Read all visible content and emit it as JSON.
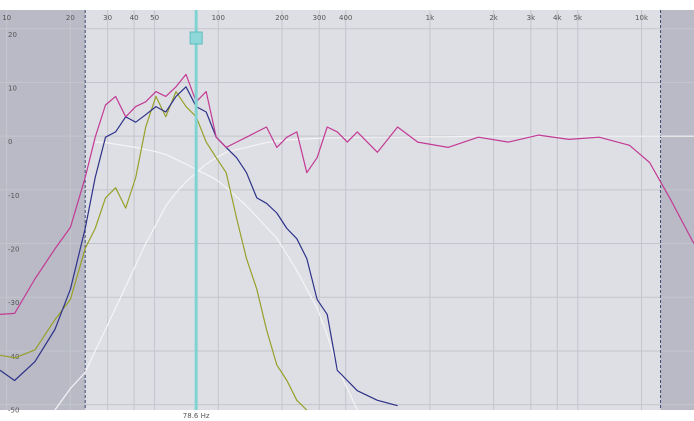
{
  "chart_data": {
    "type": "line",
    "log_x": true,
    "grid": true,
    "xlim": [
      9.3,
      17700
    ],
    "ylim": [
      -51,
      23.5
    ],
    "xticks": [
      10,
      20,
      30,
      40,
      50,
      100,
      200,
      300,
      400,
      {
        "value": 1000,
        "label": "1k"
      },
      {
        "value": 2000,
        "label": "2k"
      },
      {
        "value": 3000,
        "label": "3k"
      },
      {
        "value": 4000,
        "label": "4k"
      },
      {
        "value": 5000,
        "label": "5k"
      },
      {
        "value": 10000,
        "label": "10k"
      }
    ],
    "yticks": [
      20,
      10,
      0,
      -10,
      -20,
      -30,
      -40,
      -50
    ],
    "limits": [
      23.5,
      12300
    ],
    "cursor": {
      "value": 78.6,
      "label": "78.6 Hz"
    },
    "x": [
      9.3,
      10.9,
      13.6,
      16.9,
      20.0,
      23.5,
      26.2,
      29.3,
      32.7,
      36.5,
      40.7,
      45.4,
      50.7,
      56.5,
      63.1,
      70.4,
      78.6,
      87.7,
      97.8,
      109,
      122,
      136,
      152,
      169,
      189,
      211,
      235,
      262,
      293,
      327,
      365,
      407,
      454,
      565,
      704,
      877,
      1218,
      1693,
      2352,
      3268,
      4541,
      6310,
      8770,
      10920,
      13590,
      17690
    ],
    "series": [
      {
        "color": "#c23a94",
        "values": [
          -33.2,
          -33,
          -26.6,
          -21,
          -17,
          -7.7,
          -0.2,
          5.8,
          7.4,
          3.6,
          5.5,
          6.4,
          8.3,
          7.4,
          9.2,
          11.5,
          6.4,
          8.3,
          -0.2,
          -2.1,
          -1.1,
          -0.2,
          0.8,
          1.7,
          -2.1,
          -0.2,
          0.8,
          -6.8,
          -4.0,
          1.7,
          0.8,
          -1.1,
          0.8,
          -3.0,
          1.7,
          -1.1,
          -2.1,
          -0.2,
          -1.1,
          0.2,
          -0.6,
          -0.2,
          -1.7,
          -4.9,
          -11.5,
          -20
        ]
      },
      {
        "color": "#2e3288",
        "values": [
          -43.6,
          -45.5,
          -42,
          -36,
          -28.5,
          -17.2,
          -7.7,
          -0.2,
          0.8,
          3.6,
          2.6,
          4.0,
          5.5,
          4.5,
          7.4,
          9.2,
          5.5,
          4.5,
          -0.2,
          -2.1,
          -4.0,
          -6.8,
          -11.5,
          -12.5,
          -14.3,
          -17.2,
          -19.1,
          -22.8,
          -30.4,
          -33.2,
          -43.6,
          -45.5,
          -47.4,
          -49.2,
          -50.2,
          null,
          null,
          null,
          null,
          null,
          null,
          null,
          null,
          null,
          null,
          null
        ]
      },
      {
        "color": "#98a02a",
        "values": [
          -40.8,
          -41.3,
          -39.8,
          -34.2,
          -30.4,
          -20.9,
          -17.2,
          -11.5,
          -9.6,
          -13.4,
          -7.7,
          1.7,
          7.4,
          3.6,
          8.3,
          5.5,
          3.6,
          -1.1,
          -4.0,
          -6.8,
          -15.3,
          -22.8,
          -28.5,
          -36,
          -42.6,
          -45.5,
          -49.2,
          -51,
          null,
          null,
          null,
          null,
          null,
          null,
          null,
          null,
          null,
          null,
          null,
          null,
          null,
          null,
          null,
          null,
          null,
          null
        ]
      },
      {
        "color": "#f4f4f6",
        "values": [
          null,
          null,
          null,
          null,
          null,
          null,
          -1.1,
          -1.2,
          -1.5,
          -1.8,
          -2.1,
          -2.5,
          -2.9,
          -3.4,
          -4.3,
          -5.2,
          -6.2,
          -7.1,
          -8.1,
          -9.6,
          -11.3,
          -13,
          -15,
          -17,
          -19,
          -22,
          -25,
          -28.5,
          -32,
          -37,
          -43,
          -47,
          -51,
          null,
          null,
          null,
          null,
          null,
          null,
          null,
          null,
          null,
          null,
          null,
          null,
          null
        ]
      },
      {
        "color": "#f4f4f6",
        "values": [
          null,
          null,
          null,
          -51,
          -47,
          -44,
          -40,
          -36,
          -32,
          -28,
          -24,
          -20,
          -16.5,
          -13,
          -10.5,
          -8.5,
          -6.8,
          -5.2,
          -4.0,
          -3.0,
          -2.5,
          -2.1,
          -1.6,
          -1.2,
          -0.9,
          -0.7,
          -0.6,
          -0.5,
          -0.4,
          -0.3,
          -0.3,
          -0.2,
          -0.2,
          -0.2,
          -0.2,
          -0.1,
          -0.1,
          0,
          0,
          0,
          0,
          0,
          0,
          0,
          0,
          0
        ]
      }
    ]
  }
}
